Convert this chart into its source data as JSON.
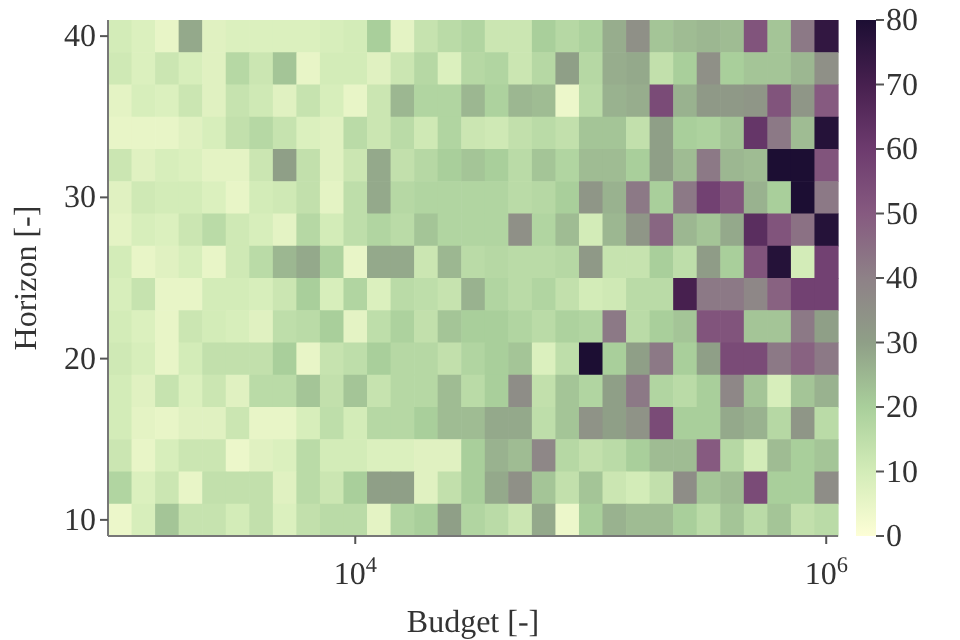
{
  "chart_data": {
    "type": "heatmap",
    "xlabel": "Budget [-]",
    "ylabel": "Horizon [-]",
    "categories": [
      null,
      null,
      null,
      null,
      null,
      null,
      null,
      null,
      null,
      null,
      "10$^{4}$",
      null,
      null,
      null,
      null,
      null,
      null,
      null,
      null,
      null,
      null,
      null,
      null,
      null,
      null,
      null,
      null,
      null,
      null,
      null,
      "10$^{6}$"
    ],
    "y_categories": [
      "40",
      null,
      null,
      null,
      null,
      "30",
      null,
      null,
      null,
      null,
      "20",
      null,
      null,
      null,
      null,
      "10"
    ],
    "clim": [
      0,
      80
    ],
    "cticks": [
      0,
      10,
      20,
      30,
      40,
      50,
      60,
      70,
      80
    ],
    "cells": [
      [
        10,
        8,
        5,
        28,
        7,
        8,
        8,
        8,
        8,
        9,
        10,
        20,
        6,
        13,
        16,
        18,
        12,
        12,
        20,
        17,
        19,
        27,
        35,
        22,
        24,
        25,
        24,
        52,
        22,
        42,
        75
      ],
      [
        11,
        8,
        12,
        9,
        7,
        17,
        12,
        22,
        5,
        10,
        10,
        7,
        12,
        17,
        8,
        17,
        18,
        12,
        17,
        30,
        17,
        27,
        28,
        14,
        20,
        35,
        20,
        22,
        22,
        25,
        35
      ],
      [
        6,
        9,
        8,
        12,
        7,
        13,
        11,
        7,
        13,
        9,
        5,
        12,
        25,
        18,
        18,
        25,
        19,
        25,
        24,
        4,
        16,
        26,
        27,
        55,
        26,
        32,
        32,
        33,
        52,
        33,
        50
      ],
      [
        5,
        5,
        5,
        7,
        9,
        14,
        17,
        13,
        8,
        7,
        16,
        12,
        16,
        11,
        18,
        12,
        11,
        14,
        16,
        14,
        22,
        22,
        14,
        30,
        20,
        19,
        22,
        62,
        42,
        24,
        78
      ],
      [
        12,
        7,
        9,
        8,
        6,
        6,
        12,
        30,
        14,
        7,
        12,
        28,
        14,
        17,
        20,
        22,
        20,
        16,
        22,
        18,
        24,
        24,
        20,
        30,
        24,
        42,
        25,
        24,
        80,
        80,
        52
      ],
      [
        7,
        11,
        10,
        10,
        8,
        5,
        10,
        11,
        14,
        6,
        15,
        28,
        17,
        18,
        18,
        18,
        18,
        16,
        17,
        20,
        33,
        26,
        42,
        20,
        42,
        58,
        52,
        26,
        20,
        80,
        42
      ],
      [
        6,
        9,
        8,
        12,
        16,
        11,
        9,
        6,
        17,
        10,
        15,
        18,
        16,
        22,
        18,
        18,
        18,
        35,
        18,
        24,
        10,
        25,
        33,
        47,
        25,
        22,
        28,
        65,
        52,
        44,
        78
      ],
      [
        10,
        5,
        7,
        9,
        5,
        11,
        16,
        25,
        28,
        19,
        5,
        28,
        28,
        12,
        25,
        16,
        17,
        16,
        16,
        17,
        32,
        13,
        13,
        20,
        15,
        31,
        20,
        52,
        78,
        10,
        58
      ],
      [
        9,
        13,
        5,
        5,
        10,
        10,
        9,
        12,
        20,
        9,
        18,
        8,
        16,
        15,
        13,
        26,
        18,
        16,
        18,
        14,
        10,
        11,
        16,
        16,
        70,
        42,
        42,
        38,
        48,
        58,
        58
      ],
      [
        10,
        8,
        5,
        12,
        10,
        9,
        7,
        15,
        16,
        20,
        6,
        15,
        19,
        14,
        22,
        20,
        20,
        18,
        16,
        19,
        18,
        42,
        16,
        20,
        22,
        52,
        52,
        22,
        22,
        42,
        30
      ],
      [
        11,
        9,
        5,
        10,
        14,
        14,
        14,
        20,
        5,
        13,
        15,
        20,
        17,
        17,
        14,
        18,
        20,
        22,
        8,
        15,
        80,
        20,
        30,
        42,
        20,
        30,
        55,
        55,
        42,
        48,
        42
      ],
      [
        10,
        7,
        13,
        8,
        12,
        7,
        16,
        16,
        22,
        14,
        22,
        13,
        17,
        17,
        24,
        16,
        20,
        36,
        14,
        22,
        18,
        30,
        42,
        18,
        16,
        20,
        38,
        22,
        9,
        22,
        26
      ],
      [
        10,
        6,
        5,
        7,
        7,
        12,
        5,
        5,
        9,
        15,
        10,
        17,
        17,
        20,
        24,
        24,
        28,
        28,
        15,
        22,
        34,
        30,
        34,
        55,
        20,
        20,
        28,
        26,
        17,
        33,
        16
      ],
      [
        12,
        5,
        9,
        12,
        12,
        4,
        7,
        8,
        16,
        10,
        10,
        8,
        8,
        7,
        7,
        20,
        26,
        24,
        38,
        17,
        14,
        16,
        20,
        24,
        24,
        50,
        17,
        10,
        24,
        20,
        22
      ],
      [
        18,
        8,
        12,
        5,
        14,
        14,
        14,
        7,
        16,
        12,
        20,
        30,
        30,
        7,
        14,
        20,
        28,
        35,
        22,
        14,
        22,
        12,
        10,
        14,
        36,
        22,
        24,
        55,
        20,
        20,
        36
      ],
      [
        4,
        9,
        22,
        13,
        13,
        10,
        14,
        8,
        14,
        16,
        16,
        6,
        18,
        20,
        30,
        18,
        16,
        12,
        28,
        4,
        20,
        26,
        24,
        24,
        20,
        16,
        22,
        16,
        22,
        14,
        16
      ]
    ]
  }
}
